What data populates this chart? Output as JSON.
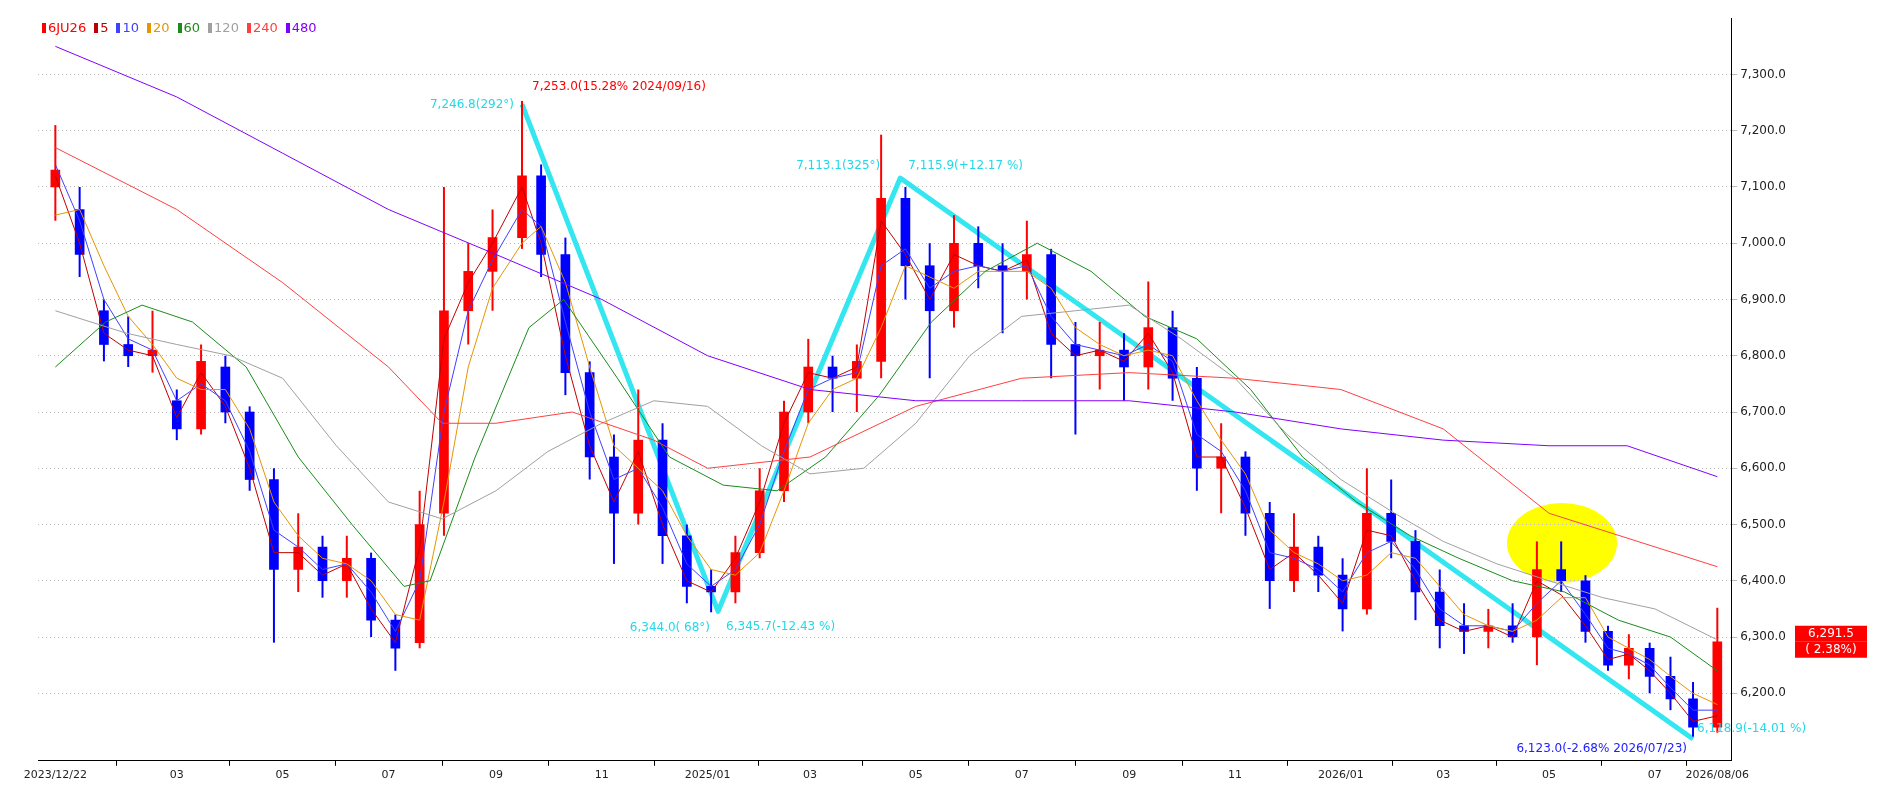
{
  "chart_data": {
    "type": "candlestick",
    "x": [
      "2023-12-22",
      "2024-01-05",
      "2024-01-19",
      "2024-02-02",
      "2024-02-16",
      "2024-03-01",
      "2024-03-15",
      "2024-03-29",
      "2024-04-12",
      "2024-04-26",
      "2024-05-10",
      "2024-05-24",
      "2024-06-07",
      "2024-06-21",
      "2024-07-05",
      "2024-07-19",
      "2024-08-02",
      "2024-08-16",
      "2024-08-30",
      "2024-09-16",
      "2024-09-27",
      "2024-10-11",
      "2024-10-25",
      "2024-11-08",
      "2024-11-22",
      "2024-12-06",
      "2024-12-20",
      "2025-01-03",
      "2025-01-17",
      "2025-01-31",
      "2025-02-14",
      "2025-02-28",
      "2025-03-14",
      "2025-03-28",
      "2025-04-11",
      "2025-04-25",
      "2025-05-09",
      "2025-05-23",
      "2025-06-06",
      "2025-06-20",
      "2025-07-04",
      "2025-07-18",
      "2025-08-01",
      "2025-08-15",
      "2025-08-29",
      "2025-09-12",
      "2025-09-26",
      "2025-10-10",
      "2025-10-24",
      "2025-11-07",
      "2025-11-21",
      "2025-12-05",
      "2025-12-19",
      "2026-01-02",
      "2026-01-16",
      "2026-01-30",
      "2026-02-13",
      "2026-02-27",
      "2026-03-13",
      "2026-03-27",
      "2026-04-10",
      "2026-04-24",
      "2026-05-08",
      "2026-05-22",
      "2026-06-04",
      "2026-06-16",
      "2026-06-28",
      "2026-07-10",
      "2026-07-23",
      "2026-08-06"
    ],
    "series": [
      {
        "name": "6JU26",
        "color": "#ff0000",
        "colors": [
          "#ff0000",
          "#0000ff",
          "#0000ff",
          "#0000ff",
          "#ff0000",
          "#0000ff",
          "#ff0000",
          "#0000ff",
          "#0000ff",
          "#0000ff",
          "#ff0000",
          "#0000ff",
          "#ff0000",
          "#0000ff",
          "#0000ff",
          "#ff0000",
          "#ff0000",
          "#ff0000",
          "#ff0000",
          "#ff0000",
          "#0000ff",
          "#0000ff",
          "#0000ff",
          "#0000ff",
          "#ff0000",
          "#0000ff",
          "#0000ff",
          "#0000ff",
          "#ff0000",
          "#ff0000",
          "#ff0000",
          "#ff0000",
          "#0000ff",
          "#ff0000",
          "#ff0000",
          "#0000ff",
          "#0000ff",
          "#ff0000",
          "#0000ff",
          "#0000ff",
          "#ff0000",
          "#0000ff",
          "#0000ff",
          "#ff0000",
          "#0000ff",
          "#ff0000",
          "#0000ff",
          "#0000ff",
          "#ff0000",
          "#0000ff",
          "#0000ff",
          "#ff0000",
          "#0000ff",
          "#0000ff",
          "#ff0000",
          "#0000ff",
          "#0000ff",
          "#0000ff",
          "#0000ff",
          "#ff0000",
          "#0000ff",
          "#ff0000",
          "#0000ff",
          "#0000ff",
          "#0000ff",
          "#ff0000",
          "#0000ff",
          "#0000ff",
          "#0000ff",
          "#ff0000"
        ],
        "ohlc": [
          [
            7100,
            7210,
            7040,
            7130
          ],
          [
            7060,
            7100,
            6940,
            6980
          ],
          [
            6880,
            6900,
            6790,
            6820
          ],
          [
            6820,
            6870,
            6780,
            6800
          ],
          [
            6800,
            6880,
            6770,
            6810
          ],
          [
            6720,
            6740,
            6650,
            6670
          ],
          [
            6670,
            6820,
            6660,
            6790
          ],
          [
            6780,
            6800,
            6680,
            6700
          ],
          [
            6700,
            6710,
            6560,
            6580
          ],
          [
            6580,
            6600,
            6290,
            6420
          ],
          [
            6420,
            6520,
            6380,
            6460
          ],
          [
            6460,
            6480,
            6370,
            6400
          ],
          [
            6400,
            6480,
            6370,
            6440
          ],
          [
            6440,
            6450,
            6300,
            6330
          ],
          [
            6330,
            6340,
            6240,
            6280
          ],
          [
            6290,
            6560,
            6280,
            6500
          ],
          [
            6520,
            7100,
            6480,
            6880
          ],
          [
            6880,
            7000,
            6820,
            6950
          ],
          [
            6950,
            7060,
            6880,
            7010
          ],
          [
            7010,
            7253,
            6990,
            7120
          ],
          [
            7120,
            7140,
            6940,
            6980
          ],
          [
            6980,
            7010,
            6730,
            6770
          ],
          [
            6770,
            6790,
            6580,
            6620
          ],
          [
            6620,
            6660,
            6430,
            6520
          ],
          [
            6520,
            6740,
            6500,
            6650
          ],
          [
            6650,
            6680,
            6430,
            6480
          ],
          [
            6480,
            6500,
            6360,
            6390
          ],
          [
            6390,
            6420,
            6344,
            6380
          ],
          [
            6380,
            6480,
            6360,
            6450
          ],
          [
            6450,
            6600,
            6440,
            6560
          ],
          [
            6560,
            6720,
            6540,
            6700
          ],
          [
            6700,
            6830,
            6680,
            6780
          ],
          [
            6780,
            6800,
            6700,
            6760
          ],
          [
            6760,
            6820,
            6700,
            6790
          ],
          [
            6790,
            7193,
            6760,
            7080
          ],
          [
            7080,
            7100,
            6900,
            6960
          ],
          [
            6960,
            7000,
            6760,
            6880
          ],
          [
            6880,
            7050,
            6850,
            7000
          ],
          [
            7000,
            7030,
            6920,
            6960
          ],
          [
            6960,
            7000,
            6840,
            6950
          ],
          [
            6950,
            7040,
            6900,
            6980
          ],
          [
            6980,
            6990,
            6760,
            6820
          ],
          [
            6820,
            6860,
            6660,
            6800
          ],
          [
            6800,
            6860,
            6740,
            6810
          ],
          [
            6810,
            6840,
            6720,
            6780
          ],
          [
            6780,
            6932,
            6740,
            6850
          ],
          [
            6850,
            6880,
            6720,
            6760
          ],
          [
            6760,
            6780,
            6560,
            6600
          ],
          [
            6600,
            6680,
            6520,
            6620
          ],
          [
            6620,
            6630,
            6480,
            6520
          ],
          [
            6520,
            6540,
            6350,
            6400
          ],
          [
            6400,
            6520,
            6380,
            6460
          ],
          [
            6460,
            6480,
            6380,
            6410
          ],
          [
            6410,
            6440,
            6310,
            6350
          ],
          [
            6350,
            6600,
            6340,
            6520
          ],
          [
            6520,
            6580,
            6440,
            6470
          ],
          [
            6470,
            6490,
            6330,
            6380
          ],
          [
            6380,
            6420,
            6280,
            6320
          ],
          [
            6320,
            6360,
            6270,
            6310
          ],
          [
            6310,
            6350,
            6280,
            6320
          ],
          [
            6320,
            6360,
            6290,
            6300
          ],
          [
            6300,
            6470,
            6250,
            6420
          ],
          [
            6420,
            6470,
            6380,
            6400
          ],
          [
            6400,
            6410,
            6290,
            6310
          ],
          [
            6310,
            6320,
            6240,
            6250
          ],
          [
            6250,
            6305,
            6225,
            6280
          ],
          [
            6280,
            6290,
            6200,
            6230
          ],
          [
            6230,
            6265,
            6170,
            6190
          ],
          [
            6190,
            6220,
            6123,
            6140
          ],
          [
            6140,
            6352,
            6130,
            6291.5
          ]
        ]
      },
      {
        "name": "5",
        "type": "line",
        "color": "#c00000",
        "values": [
          7120,
          7000,
          6840,
          6810,
          6800,
          6690,
          6770,
          6710,
          6600,
          6450,
          6450,
          6410,
          6430,
          6350,
          6290,
          6460,
          6830,
          6930,
          7000,
          7100,
          7000,
          6800,
          6640,
          6540,
          6630,
          6500,
          6400,
          6380,
          6440,
          6540,
          6680,
          6770,
          6760,
          6780,
          7040,
          6980,
          6900,
          6980,
          6960,
          6950,
          6970,
          6840,
          6800,
          6810,
          6790,
          6840,
          6770,
          6620,
          6620,
          6530,
          6420,
          6450,
          6410,
          6360,
          6490,
          6480,
          6400,
          6330,
          6310,
          6320,
          6300,
          6400,
          6375,
          6320,
          6260,
          6270,
          6240,
          6200,
          6150,
          6160
        ]
      },
      {
        "name": "10",
        "type": "line",
        "color": "#4040ff",
        "values": [
          7140,
          7040,
          6900,
          6830,
          6810,
          6720,
          6750,
          6720,
          6630,
          6490,
          6460,
          6420,
          6430,
          6380,
          6310,
          6400,
          6700,
          6880,
          6970,
          7060,
          7030,
          6860,
          6700,
          6580,
          6600,
          6530,
          6430,
          6390,
          6420,
          6500,
          6630,
          6740,
          6760,
          6770,
          6960,
          6990,
          6920,
          6950,
          6960,
          6950,
          6960,
          6870,
          6820,
          6810,
          6800,
          6820,
          6790,
          6660,
          6630,
          6560,
          6450,
          6440,
          6420,
          6380,
          6450,
          6470,
          6420,
          6350,
          6320,
          6320,
          6310,
          6360,
          6400,
          6340,
          6280,
          6270,
          6250,
          6210,
          6170,
          6170
        ]
      },
      {
        "name": "20",
        "type": "line",
        "color": "#e69500",
        "values": [
          7050,
          7060,
          6960,
          6870,
          6820,
          6760,
          6740,
          6740,
          6670,
          6540,
          6480,
          6440,
          6430,
          6400,
          6340,
          6330,
          6540,
          6780,
          6920,
          7000,
          7030,
          6930,
          6780,
          6640,
          6600,
          6560,
          6480,
          6420,
          6410,
          6450,
          6560,
          6680,
          6740,
          6760,
          6850,
          6960,
          6940,
          6920,
          6950,
          6950,
          6950,
          6920,
          6850,
          6820,
          6800,
          6810,
          6800,
          6720,
          6650,
          6590,
          6490,
          6450,
          6430,
          6400,
          6410,
          6450,
          6440,
          6390,
          6340,
          6320,
          6310,
          6330,
          6370,
          6370,
          6300,
          6280,
          6260,
          6230,
          6200,
          6180
        ]
      },
      {
        "name": "60",
        "type": "line",
        "color": "#1a8c1a",
        "x": [
          "2023-12-22",
          "2024-01-20",
          "2024-02-10",
          "2024-03-10",
          "2024-04-10",
          "2024-05-10",
          "2024-06-10",
          "2024-07-10",
          "2024-07-25",
          "2024-08-20",
          "2024-09-20",
          "2024-10-10",
          "2024-11-10",
          "2024-12-10",
          "2025-01-10",
          "2025-02-10",
          "2025-03-10",
          "2025-04-10",
          "2025-05-10",
          "2025-06-10",
          "2025-07-10",
          "2025-08-10",
          "2025-09-10",
          "2025-10-10",
          "2025-11-10",
          "2025-12-10",
          "2026-01-10",
          "2026-02-10",
          "2026-03-10",
          "2026-04-10",
          "2026-05-10",
          "2026-06-10",
          "2026-07-10",
          "2026-08-06"
        ],
        "values": [
          6780,
          6860,
          6890,
          6860,
          6780,
          6620,
          6500,
          6390,
          6400,
          6620,
          6850,
          6900,
          6760,
          6620,
          6570,
          6560,
          6620,
          6730,
          6860,
          6950,
          7000,
          6950,
          6870,
          6830,
          6740,
          6620,
          6540,
          6480,
          6440,
          6400,
          6380,
          6330,
          6300,
          6240
        ]
      },
      {
        "name": "120",
        "type": "line",
        "color": "#a0a0a0",
        "x": [
          "2023-12-22",
          "2024-02-01",
          "2024-03-01",
          "2024-04-01",
          "2024-05-01",
          "2024-06-01",
          "2024-07-01",
          "2024-08-01",
          "2024-09-01",
          "2024-10-01",
          "2024-11-01",
          "2024-12-01",
          "2025-01-01",
          "2025-02-01",
          "2025-03-01",
          "2025-04-01",
          "2025-05-01",
          "2025-06-01",
          "2025-07-01",
          "2025-08-01",
          "2025-09-01",
          "2025-10-01",
          "2025-11-01",
          "2025-12-01",
          "2026-01-01",
          "2026-02-01",
          "2026-03-01",
          "2026-04-01",
          "2026-05-01",
          "2026-06-01",
          "2026-07-01",
          "2026-08-06"
        ],
        "values": [
          6880,
          6840,
          6820,
          6800,
          6760,
          6640,
          6540,
          6510,
          6560,
          6630,
          6680,
          6720,
          6710,
          6640,
          6590,
          6600,
          6680,
          6800,
          6870,
          6880,
          6890,
          6830,
          6760,
          6660,
          6580,
          6520,
          6470,
          6430,
          6400,
          6370,
          6350,
          6295
        ]
      },
      {
        "name": "240",
        "type": "line",
        "color": "#ff4040",
        "x": [
          "2023-12-22",
          "2024-03-01",
          "2024-05-01",
          "2024-07-01",
          "2024-08-01",
          "2024-09-01",
          "2024-10-15",
          "2024-12-01",
          "2025-01-01",
          "2025-03-01",
          "2025-05-01",
          "2025-07-01",
          "2025-09-01",
          "2025-11-01",
          "2026-01-01",
          "2026-03-01",
          "2026-05-01",
          "2026-08-06"
        ],
        "values": [
          7170,
          7060,
          6930,
          6780,
          6680,
          6680,
          6700,
          6650,
          6600,
          6620,
          6710,
          6760,
          6770,
          6760,
          6740,
          6670,
          6520,
          6425
        ]
      },
      {
        "name": "480",
        "type": "line",
        "color": "#8000ff",
        "x": [
          "2023-12-22",
          "2024-03-01",
          "2024-05-01",
          "2024-07-01",
          "2024-09-01",
          "2024-11-01",
          "2025-01-01",
          "2025-03-01",
          "2025-05-01",
          "2025-07-01",
          "2025-09-01",
          "2025-11-01",
          "2026-01-01",
          "2026-03-01",
          "2026-05-01",
          "2026-06-15",
          "2026-08-06"
        ],
        "values": [
          7350,
          7260,
          7160,
          7060,
          6980,
          6900,
          6800,
          6740,
          6720,
          6720,
          6720,
          6700,
          6670,
          6650,
          6640,
          6640,
          6585
        ]
      },
      {
        "type": "line",
        "color": "#33e6f0",
        "x": [
          "2024-09-16",
          "2025-01-07",
          "2025-04-22",
          "2026-07-23"
        ],
        "values": [
          7246.8,
          6345.7,
          7115.9,
          6118.9
        ]
      }
    ],
    "xlim": [
      "2023-12-12",
      "2026-08-14"
    ],
    "xticks": [
      {
        "value": "2023-12-22",
        "label": "2023/12/22"
      },
      {
        "value": "2024-03-01",
        "label": "03"
      },
      {
        "value": "2024-05-01",
        "label": "05"
      },
      {
        "value": "2024-07-01",
        "label": "07"
      },
      {
        "value": "2024-09-01",
        "label": "09"
      },
      {
        "value": "2024-11-01",
        "label": "11"
      },
      {
        "value": "2025-01-01",
        "label": "2025/01"
      },
      {
        "value": "2025-03-01",
        "label": "03"
      },
      {
        "value": "2025-05-01",
        "label": "05"
      },
      {
        "value": "2025-07-01",
        "label": "07"
      },
      {
        "value": "2025-09-01",
        "label": "09"
      },
      {
        "value": "2025-11-01",
        "label": "11"
      },
      {
        "value": "2026-01-01",
        "label": "2026/01"
      },
      {
        "value": "2026-03-01",
        "label": "03"
      },
      {
        "value": "2026-05-01",
        "label": "05"
      },
      {
        "value": "2026-07-01",
        "label": "07"
      },
      {
        "value": "2026-08-06",
        "label": "2026/08/06"
      }
    ],
    "ylim": [
      6080,
      7400
    ],
    "yticks": [
      {
        "value": 6200,
        "label": "6,200.0"
      },
      {
        "value": 6300,
        "label": "6,300.0"
      },
      {
        "value": 6400,
        "label": "6,400.0"
      },
      {
        "value": 6500,
        "label": "6,500.0"
      },
      {
        "value": 6600,
        "label": "6,600.0"
      },
      {
        "value": 6700,
        "label": "6,700.0"
      },
      {
        "value": 6800,
        "label": "6,800.0"
      },
      {
        "value": 6900,
        "label": "6,900.0"
      },
      {
        "value": 7000,
        "label": "7,000.0"
      },
      {
        "value": 7100,
        "label": "7,100.0"
      },
      {
        "value": 7200,
        "label": "7,200.0"
      },
      {
        "value": 7300,
        "label": "7,300.0"
      }
    ],
    "annotations": [
      {
        "text": "7,253.0(15.28% 2024/09/16)",
        "x": "2024-09-16",
        "y": 7253
      },
      {
        "text": "7,246.8(292°)",
        "x": "2024-09-16",
        "y": 7246.8
      },
      {
        "text": "6,344.0( 68°)",
        "x": "2025-01-07",
        "y": 6344
      },
      {
        "text": "6,345.7(-12.43 %)",
        "x": "2025-01-07",
        "y": 6345.7
      },
      {
        "text": "7,113.1(325°)",
        "x": "2025-04-22",
        "y": 7113.1
      },
      {
        "text": "7,115.9(+12.17 %)",
        "x": "2025-04-22",
        "y": 7115.9
      },
      {
        "text": "6,118.9(-14.01 %)",
        "x": "2026-07-23",
        "y": 6118.9
      },
      {
        "text": "6,123.0(-2.68% 2026/07/23)",
        "x": "2026-07-23",
        "y": 6123
      },
      "6,291.5",
      "( 2.38%)"
    ],
    "grid": "y",
    "legend": "top left",
    "marker": "none",
    "line_style": "solid"
  }
}
